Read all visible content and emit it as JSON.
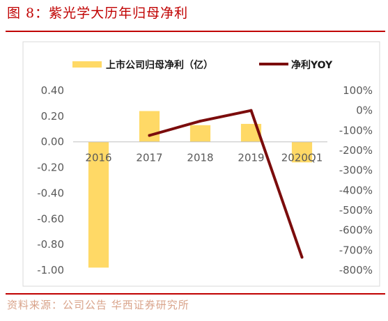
{
  "figure": {
    "title": "图 8：紫光学大历年归母净利",
    "source": "资料来源：公司公告 华西证券研究所"
  },
  "chart_data": {
    "type": "bar",
    "categories": [
      "2016",
      "2017",
      "2018",
      "2019",
      "2020Q1"
    ],
    "series": [
      {
        "name": "上市公司归母净利（亿）",
        "type": "bar",
        "axis": "left",
        "color": "#ffd966",
        "values": [
          -0.98,
          0.24,
          0.13,
          0.14,
          -0.16
        ]
      },
      {
        "name": "净利YOY",
        "type": "line",
        "axis": "right",
        "color": "#7b0c0c",
        "values": [
          null,
          -125,
          -53,
          0,
          -735
        ]
      }
    ],
    "y_left": {
      "ylim": [
        -1.0,
        0.4
      ],
      "ticks": [
        0.4,
        0.2,
        0.0,
        -0.2,
        -0.4,
        -0.6,
        -0.8,
        -1.0
      ],
      "tick_labels": [
        "0.40",
        "0.20",
        "0.00",
        "-0.20",
        "-0.40",
        "-0.60",
        "-0.80",
        "-1.00"
      ]
    },
    "y_right": {
      "ylim": [
        -800,
        100
      ],
      "ticks": [
        100,
        0,
        -100,
        -200,
        -300,
        -400,
        -500,
        -600,
        -700,
        -800
      ],
      "tick_labels": [
        "100%",
        "0%",
        "-100%",
        "-200%",
        "-300%",
        "-400%",
        "-500%",
        "-600%",
        "-700%",
        "-800%"
      ]
    },
    "legend_position": "top",
    "grid": false
  }
}
